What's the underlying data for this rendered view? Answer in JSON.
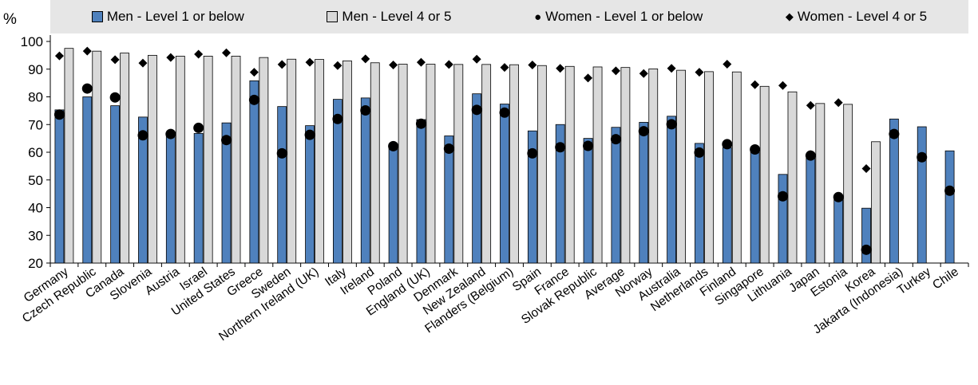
{
  "legend": {
    "men_low": "Men -  Level 1 or below",
    "men_high": "Men - Level 4 or 5",
    "women_low": "Women - Level 1 or below",
    "women_high": "Women - Level 4 or 5"
  },
  "chart_data": {
    "type": "bar",
    "ylabel": "%",
    "ylim": [
      20,
      100
    ],
    "yticks": [
      20,
      30,
      40,
      50,
      60,
      70,
      80,
      90,
      100
    ],
    "grid": false,
    "legend_position": "top",
    "categories": [
      "Germany",
      "Czech Republic",
      "Canada",
      "Slovenia",
      "Austria",
      "Israel",
      "United States",
      "Greece",
      "Sweden",
      "Northern Ireland (UK)",
      "Italy",
      "Ireland",
      "Poland",
      "England (UK)",
      "Denmark",
      "New Zealand",
      "Flanders (Belgium)",
      "Spain",
      "France",
      "Slovak Republic",
      "Average",
      "Norway",
      "Australia",
      "Netherlands",
      "Finland",
      "Singapore",
      "Lithuania",
      "Japan",
      "Estonia",
      "Korea",
      "Jakarta (Indonesia)",
      "Turkey",
      "Chile"
    ],
    "series": [
      {
        "name": "Men -  Level 1 or below",
        "mark": "bar",
        "color": "#4f81bd",
        "values": [
          75.3,
          80,
          76.8,
          72.7,
          66.6,
          66.8,
          70.6,
          85.8,
          76.5,
          69.6,
          79.1,
          79.6,
          62.5,
          71.8,
          65.9,
          81.1,
          77.4,
          67.7,
          70,
          65,
          69,
          70.8,
          73,
          63.2,
          61.7,
          61.3,
          52,
          57.9,
          43,
          39.8,
          72,
          69.2,
          60.5
        ]
      },
      {
        "name": "Men - Level 4 or 5",
        "mark": "bar",
        "color": "#d9d9d9",
        "values": [
          97.5,
          96.5,
          95.8,
          95,
          94.7,
          94.7,
          94.7,
          94.2,
          93.6,
          93.5,
          93,
          92.3,
          91.8,
          91.8,
          91.7,
          91.7,
          91.6,
          91.3,
          91,
          90.8,
          90.6,
          90.1,
          89.6,
          89.1,
          89,
          83.8,
          81.8,
          77.6,
          77.3,
          63.8,
          null,
          null,
          null
        ]
      },
      {
        "name": "Women - Level 1 or below",
        "mark": "circle",
        "color": "#000000",
        "values": [
          73.6,
          83,
          79.8,
          66.1,
          66.6,
          68.8,
          64.4,
          78.9,
          59.6,
          66.3,
          72,
          75.1,
          62.2,
          70.3,
          61.3,
          75.3,
          74.3,
          59.6,
          61.8,
          62.3,
          64.7,
          67.6,
          70.1,
          59.9,
          62.9,
          61,
          44.1,
          58.8,
          43.8,
          24.8,
          66.6,
          58.2,
          46.1
        ]
      },
      {
        "name": "Women - Level 4 or 5",
        "mark": "diamond",
        "color": "#000000",
        "values": [
          94.8,
          96.5,
          93.4,
          92.2,
          94.2,
          95.4,
          95.9,
          88.9,
          91.7,
          92.5,
          91.3,
          93.7,
          91.5,
          92.5,
          91.7,
          93.6,
          90.6,
          91.5,
          90.3,
          86.8,
          89.4,
          88.4,
          90.3,
          88.9,
          91.8,
          84.4,
          84.1,
          76.9,
          77.9,
          54.1,
          null,
          null,
          null
        ]
      }
    ]
  }
}
